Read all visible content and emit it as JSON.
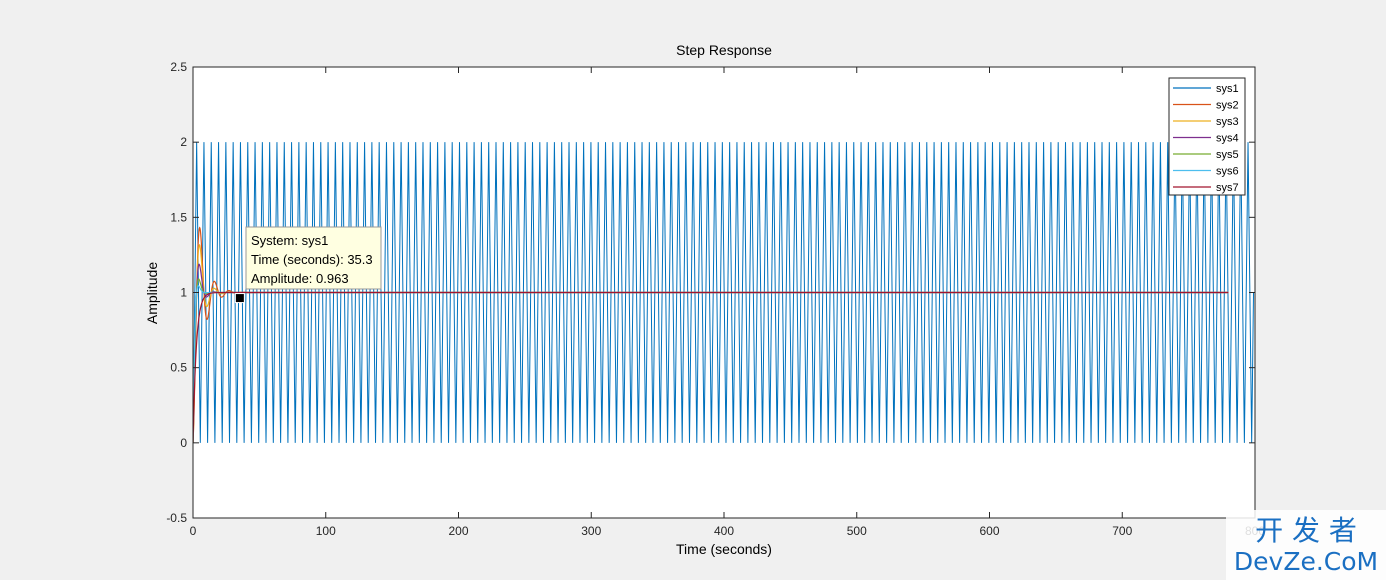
{
  "chart_data": {
    "type": "line",
    "title": "Step Response",
    "xlabel": "Time (seconds)",
    "ylabel": "Amplitude",
    "xlim": [
      0,
      800
    ],
    "ylim": [
      -0.5,
      2.5
    ],
    "xticks": [
      0,
      100,
      200,
      300,
      400,
      500,
      600,
      700,
      800
    ],
    "xtick_labels": [
      "0",
      "100",
      "200",
      "300",
      "400",
      "500",
      "600",
      "700",
      "800"
    ],
    "yticks": [
      -0.5,
      0,
      0.5,
      1,
      1.5,
      2,
      2.5
    ],
    "ytick_labels": [
      "-0.5",
      "0",
      "0.5",
      "1",
      "1.5",
      "2",
      "2.5"
    ],
    "grid": false,
    "legend_position": "top-right",
    "series": [
      {
        "name": "sys1",
        "color": "#0072bd",
        "model": "undamped",
        "amplitude": 2.0,
        "final": 1.0,
        "period": 5.5,
        "peak": 2.0
      },
      {
        "name": "sys2",
        "color": "#d95319",
        "model": "damped",
        "peak": 1.72,
        "final": 1.0,
        "period": 5.5,
        "settle_time": 25
      },
      {
        "name": "sys3",
        "color": "#edb120",
        "model": "damped",
        "peak": 1.5,
        "final": 1.0,
        "period": 5.5,
        "settle_time": 18
      },
      {
        "name": "sys4",
        "color": "#7e2f8e",
        "model": "damped",
        "peak": 1.3,
        "final": 1.0,
        "period": 5.5,
        "settle_time": 12
      },
      {
        "name": "sys5",
        "color": "#77ac30",
        "model": "damped",
        "peak": 1.1,
        "final": 1.0,
        "period": 5.5,
        "settle_time": 8
      },
      {
        "name": "sys6",
        "color": "#4dbeee",
        "model": "damped",
        "peak": 1.03,
        "final": 1.0,
        "period": 5.5,
        "settle_time": 6
      },
      {
        "name": "sys7",
        "color": "#a2142f",
        "model": "damped",
        "peak": 1.0,
        "final": 1.0,
        "period": 5.5,
        "settle_time": 10
      }
    ],
    "datatip": {
      "system": "System: sys1",
      "time": "Time (seconds): 35.3",
      "amplitude": "Amplitude: 0.963",
      "x": 35.3,
      "y": 0.963
    }
  },
  "watermark": {
    "line1": "开 发 者",
    "line2": "DevZe.CoM"
  }
}
